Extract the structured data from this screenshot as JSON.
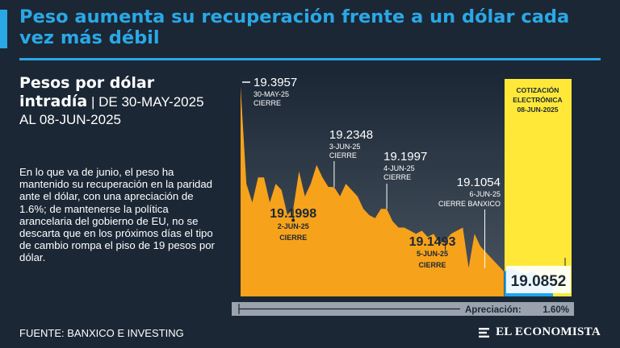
{
  "header": {
    "title": "Peso aumenta su recuperación frente a un dólar cada vez más débil"
  },
  "sidebar": {
    "subtitle_strong": "Pesos por dólar intradía",
    "subtitle_rest": "DE 30-MAY-2025 AL 08-JUN-2025",
    "description": "En lo que va de junio, el peso ha mantenido su recuperación en la paridad ante el dólar, con una apreciación de 1.6%; de mantenerse la política arancelaria del gobierno de EU, no se descarta que en los próximos días el tipo de cambio rompa el piso de 19 pesos por dólar."
  },
  "footer": {
    "source": "FUENTE: BANXICO E INVESTING",
    "brand": "EL ECONOMISTA"
  },
  "colors": {
    "background": "#1b2735",
    "accent": "#2aa8e6",
    "area": "#f7a21b",
    "highlight": "#ffe838",
    "electronic": "#1ca7ec"
  },
  "chart_data": {
    "type": "area",
    "title": "Pesos por dólar intradía",
    "ylim": [
      19.06,
      19.41
    ],
    "values": [
      19.3957,
      19.24,
      19.21,
      19.25,
      19.25,
      19.21,
      19.24,
      19.23,
      19.19,
      19.1998,
      19.26,
      19.22,
      19.24,
      19.27,
      19.25,
      19.235,
      19.2348,
      19.22,
      19.24,
      19.23,
      19.22,
      19.2,
      19.19,
      19.185,
      19.2,
      19.1997,
      19.18,
      19.17,
      19.17,
      19.165,
      19.16,
      19.165,
      19.155,
      19.16,
      19.145,
      19.1493,
      19.16,
      19.165,
      19.17,
      19.1054,
      19.16,
      19.14,
      19.13,
      19.12,
      19.11,
      19.1
    ],
    "electronic_values": [
      19.1,
      19.105,
      19.1,
      19.095,
      19.1,
      19.09,
      19.08,
      19.0852
    ],
    "annotations": [
      {
        "value": "19.3957",
        "date": "30-MAY-25",
        "note": "CIERRE"
      },
      {
        "value": "19.1998",
        "date": "2-JUN-25",
        "note": "CIERRE"
      },
      {
        "value": "19.2348",
        "date": "3-JUN-25",
        "note": "CIERRE"
      },
      {
        "value": "19.1997",
        "date": "4-JUN-25",
        "note": "CIERRE"
      },
      {
        "value": "19.1493",
        "date": "5-JUN-25",
        "note": "CIERRE"
      },
      {
        "value": "19.1054",
        "date": "6-JUN-25",
        "note": "CIERRE BANXICO"
      }
    ],
    "electronic_label": "COTIZACIÓN ELECTRÓNICA 08-JUN-2025",
    "last_value": "19.0852",
    "appreciation_label": "Apreciación:",
    "appreciation_value": "1.60%"
  }
}
